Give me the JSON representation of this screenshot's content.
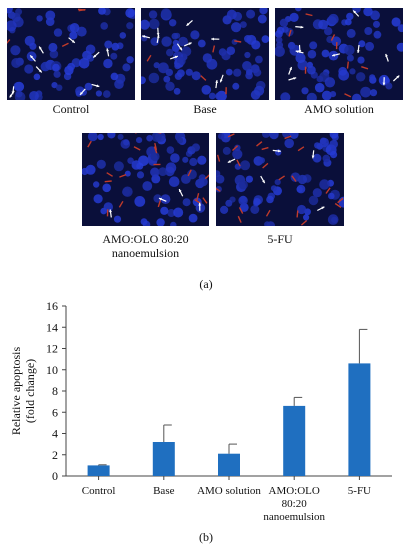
{
  "micrographs": [
    {
      "caption": "Control"
    },
    {
      "caption": "Base"
    },
    {
      "caption": "AMO solution"
    },
    {
      "caption_lines": [
        "AMO:OLO 80:20",
        "nanoemulsion"
      ]
    },
    {
      "caption": "5-FU"
    }
  ],
  "panel_a_label": "(a)",
  "panel_b_label": "(b)",
  "colors": {
    "nucleus": "#2a3fd6",
    "background": "#0a0f3a",
    "apoptotic": "#c03a2a",
    "arrow": "#ffffff",
    "bar": "#1f6fc0"
  },
  "chart_data": {
    "type": "bar",
    "categories": [
      "Control",
      "Base",
      "AMO solution",
      "AMO:OLO 80:20 nanoemulsion",
      "5-FU"
    ],
    "category_lines": [
      [
        "Control"
      ],
      [
        "Base"
      ],
      [
        "AMO solution"
      ],
      [
        "AMO:OLO",
        "80:20",
        "nanoemulsion"
      ],
      [
        "5-FU"
      ]
    ],
    "values": [
      1.0,
      3.2,
      2.1,
      6.6,
      10.6
    ],
    "errors": [
      0.05,
      1.6,
      0.9,
      0.8,
      3.2
    ],
    "ylabel_lines": [
      "Relative apoptosis",
      "(fold change)"
    ],
    "ylim": [
      0,
      16
    ],
    "yticks": [
      0,
      2,
      4,
      6,
      8,
      10,
      12,
      14,
      16
    ],
    "grid": false,
    "legend": "none"
  }
}
